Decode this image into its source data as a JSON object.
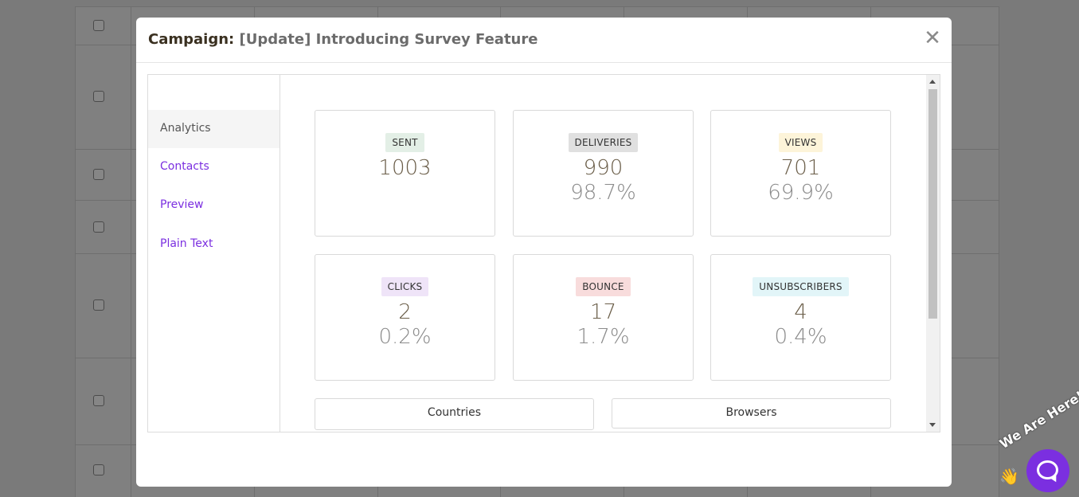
{
  "modal": {
    "title_prefix": "Campaign:",
    "title_name": "[Update] Introducing Survey Feature",
    "close_glyph": "✕"
  },
  "sidebar": {
    "items": [
      {
        "label": "Analytics",
        "active": true
      },
      {
        "label": "Contacts",
        "active": false
      },
      {
        "label": "Preview",
        "active": false
      },
      {
        "label": "Plain Text",
        "active": false
      }
    ]
  },
  "stats": [
    {
      "label": "SENT",
      "value": "1003",
      "percent": "",
      "badge_color": "#e3efe6"
    },
    {
      "label": "DELIVERIES",
      "value": "990",
      "percent": "98.7%",
      "badge_color": "#e0e0e0"
    },
    {
      "label": "VIEWS",
      "value": "701",
      "percent": "69.9%",
      "badge_color": "#fdf4d9"
    },
    {
      "label": "CLICKS",
      "value": "2",
      "percent": "0.2%",
      "badge_color": "#efe4f8"
    },
    {
      "label": "BOUNCE",
      "value": "17",
      "percent": "1.7%",
      "badge_color": "#f8dcdc"
    },
    {
      "label": "UNSUBSCRIBERS",
      "value": "4",
      "percent": "0.4%",
      "badge_color": "#e2f5f8"
    }
  ],
  "panels": {
    "countries": "Countries",
    "browsers": "Browsers"
  },
  "chat": {
    "teaser": "We Are Here!",
    "wave_glyph": "👋"
  },
  "colors": {
    "accent": "#7b2fe0",
    "overlay": "#7a7a7a"
  }
}
